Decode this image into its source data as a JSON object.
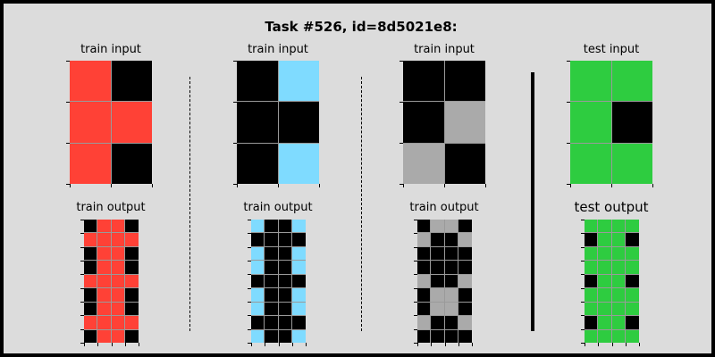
{
  "title": "Task #526, id=8d5021e8:",
  "colors": {
    "0": "#000000",
    "2": "#ff4136",
    "5": "#aaaaaa",
    "8": "#7fdbff",
    "3": "#2ecc40"
  },
  "pairs": [
    {
      "input_label": "train input",
      "output_label": "train output",
      "input": [
        [
          2,
          0
        ],
        [
          2,
          2
        ],
        [
          2,
          0
        ]
      ],
      "output": [
        [
          0,
          2,
          2,
          0
        ],
        [
          2,
          2,
          2,
          2
        ],
        [
          0,
          2,
          2,
          0
        ],
        [
          0,
          2,
          2,
          0
        ],
        [
          2,
          2,
          2,
          2
        ],
        [
          0,
          2,
          2,
          0
        ],
        [
          0,
          2,
          2,
          0
        ],
        [
          2,
          2,
          2,
          2
        ],
        [
          0,
          2,
          2,
          0
        ]
      ]
    },
    {
      "input_label": "train input",
      "output_label": "train output",
      "input": [
        [
          0,
          8
        ],
        [
          0,
          0
        ],
        [
          0,
          8
        ]
      ],
      "output": [
        [
          8,
          0,
          0,
          8
        ],
        [
          0,
          0,
          0,
          0
        ],
        [
          8,
          0,
          0,
          8
        ],
        [
          8,
          0,
          0,
          8
        ],
        [
          0,
          0,
          0,
          0
        ],
        [
          8,
          0,
          0,
          8
        ],
        [
          8,
          0,
          0,
          8
        ],
        [
          0,
          0,
          0,
          0
        ],
        [
          8,
          0,
          0,
          8
        ]
      ]
    },
    {
      "input_label": "train input",
      "output_label": "train output",
      "input": [
        [
          0,
          0
        ],
        [
          0,
          5
        ],
        [
          5,
          0
        ]
      ],
      "output": [
        [
          0,
          5,
          5,
          0
        ],
        [
          5,
          0,
          0,
          5
        ],
        [
          0,
          0,
          0,
          0
        ],
        [
          0,
          0,
          0,
          0
        ],
        [
          5,
          0,
          0,
          5
        ],
        [
          0,
          5,
          5,
          0
        ],
        [
          0,
          5,
          5,
          0
        ],
        [
          5,
          0,
          0,
          5
        ],
        [
          0,
          0,
          0,
          0
        ]
      ]
    },
    {
      "input_label": "test input",
      "output_label": "test output",
      "input": [
        [
          3,
          3
        ],
        [
          3,
          0
        ],
        [
          3,
          3
        ]
      ],
      "output": [
        [
          3,
          3,
          3,
          3
        ],
        [
          0,
          3,
          3,
          0
        ],
        [
          3,
          3,
          3,
          3
        ],
        [
          3,
          3,
          3,
          3
        ],
        [
          0,
          3,
          3,
          0
        ],
        [
          3,
          3,
          3,
          3
        ],
        [
          3,
          3,
          3,
          3
        ],
        [
          0,
          3,
          3,
          0
        ],
        [
          3,
          3,
          3,
          3
        ]
      ]
    }
  ]
}
